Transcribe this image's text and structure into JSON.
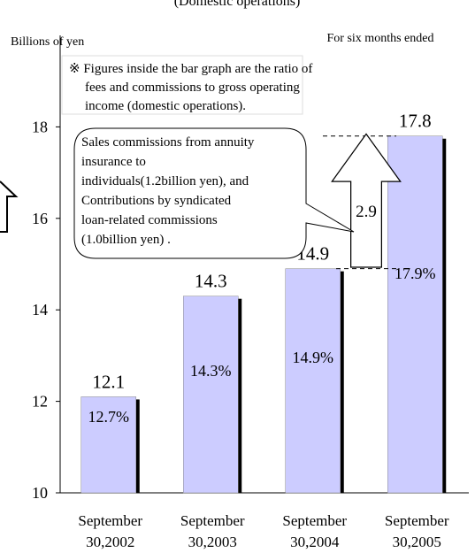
{
  "chart_data": {
    "type": "bar",
    "subtitle": "(Domestic operations)",
    "y_axis_label": "Billions of yen",
    "period_label": "For six months ended",
    "categories": [
      "September 30,2002",
      "September 30,2003",
      "September 30,2004",
      "September 30,2005"
    ],
    "values": [
      12.1,
      14.3,
      14.9,
      17.8
    ],
    "ratio_labels": [
      "12.7%",
      "14.3%",
      "14.9%",
      "17.9%"
    ],
    "color": "#ccccff",
    "shadow_color": "#000000",
    "ylim": [
      10,
      20
    ],
    "yticks": [
      10,
      12,
      14,
      16,
      18
    ],
    "note": [
      "※ Figures inside the bar graph are the ratio of",
      "fees and commissions to gross operating",
      "income (domestic operations)."
    ],
    "callout": [
      "Sales commissions from annuity",
      "insurance to",
      "individuals(1.2billion yen), and",
      "Contributions by syndicated",
      "loan-related commissions",
      "(1.0billion yen) ."
    ],
    "difference": 2.9
  }
}
